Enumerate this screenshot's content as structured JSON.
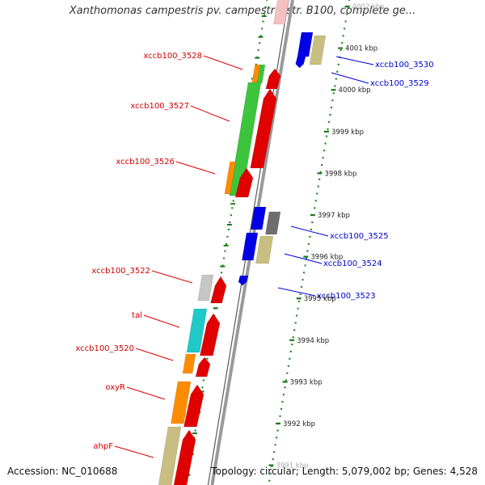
{
  "title": "Xanthomonas campestris pv. campestris str. B100, complete ge...",
  "footer": {
    "accession": "Accession: NC_010688",
    "summary": "Topology: circular; Length: 5,079,002 bp; Genes: 4,528"
  },
  "ruler": [
    {
      "label": "4002 kbp",
      "faded": true
    },
    {
      "label": "4001 kbp"
    },
    {
      "label": "4000 kbp"
    },
    {
      "label": "3999 kbp"
    },
    {
      "label": "3998 kbp"
    },
    {
      "label": "3997 kbp"
    },
    {
      "label": "3996 kbp"
    },
    {
      "label": "3995 kbp"
    },
    {
      "label": "3994 kbp"
    },
    {
      "label": "3993 kbp"
    },
    {
      "label": "3992 kbp"
    },
    {
      "label": "3991 kbp",
      "faded": true
    }
  ],
  "gene_labels_left": [
    "xccb100_3528",
    "xccb100_3527",
    "xccb100_3526",
    "xccb100_3522",
    "tal",
    "xccb100_3520",
    "oxyR",
    "ahpF"
  ],
  "gene_labels_right": [
    "xccb100_3530",
    "xccb100_3529",
    "xccb100_3525",
    "xccb100_3524",
    "xccb100_3523"
  ],
  "colors": {
    "forward_strand": "#e00000",
    "reverse_strand": "#0000e6",
    "backbone": "#9a9a9a",
    "ruler_tick": "#1a7a1a",
    "orange": "#ff8c00",
    "green": "#3cc43c",
    "khaki": "#c8be82",
    "cyan": "#20c8c8",
    "gray": "#6e6e6e",
    "lightgray": "#c6c6c6"
  }
}
